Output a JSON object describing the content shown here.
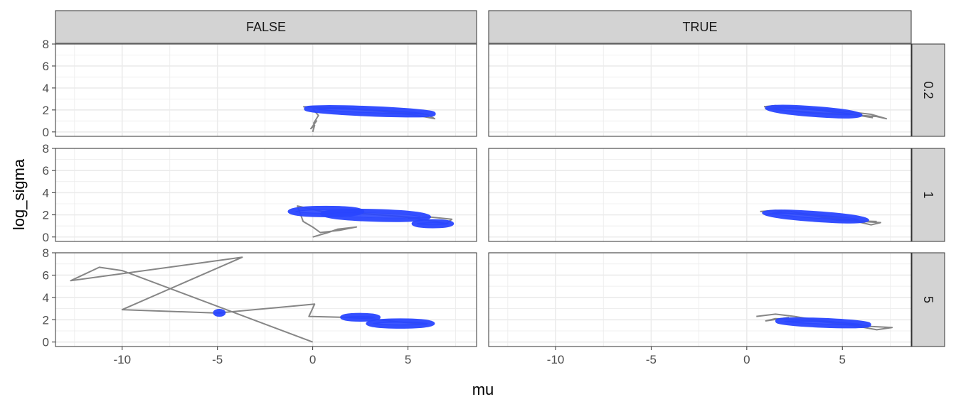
{
  "chart_data": {
    "type": "line",
    "title": "",
    "xlabel": "mu",
    "ylabel": "log_sigma",
    "xlim": [
      -13.5,
      8.6
    ],
    "ylim": [
      -0.4,
      8.0
    ],
    "x_ticks": [
      -10,
      -5,
      0,
      5
    ],
    "x_tick_labels": [
      "-10",
      "-5",
      "0",
      "5"
    ],
    "y_ticks": [
      0,
      2,
      4,
      6,
      8
    ],
    "y_tick_labels": [
      "0",
      "2",
      "4",
      "6",
      "8"
    ],
    "grid": true,
    "theme": "bw",
    "facet_cols": [
      "FALSE",
      "TRUE"
    ],
    "facet_rows": [
      "0.2",
      "1",
      "5"
    ],
    "colors": {
      "trace": "#7f7f7f",
      "posterior": "#2946ff",
      "strip_fill": "#d3d3d3",
      "grid": "#ebebeb"
    },
    "panels": [
      {
        "col": "FALSE",
        "row": "0.2",
        "trace": [
          [
            0,
            0
          ],
          [
            0.1,
            0.6
          ],
          [
            -0.1,
            0.3
          ],
          [
            0.2,
            1.0
          ],
          [
            0.05,
            0.8
          ],
          [
            0.3,
            1.5
          ],
          [
            0.0,
            2.1
          ],
          [
            1.5,
            2.2
          ],
          [
            3.0,
            2.0
          ],
          [
            4.5,
            1.8
          ],
          [
            6.0,
            1.6
          ],
          [
            6.4,
            1.2
          ],
          [
            5.5,
            1.5
          ],
          [
            3.5,
            1.9
          ],
          [
            1.0,
            2.2
          ],
          [
            -0.5,
            2.3
          ]
        ],
        "ellipses": [
          {
            "cx": 3.0,
            "cy": 1.88,
            "rx": 3.35,
            "ry": 0.28,
            "angle": -0.0705
          }
        ]
      },
      {
        "col": "TRUE",
        "row": "0.2",
        "trace": [
          [
            0.9,
            2.3
          ],
          [
            1.5,
            2.4
          ],
          [
            2.2,
            2.2
          ],
          [
            3.0,
            2.1
          ],
          [
            3.8,
            2.0
          ],
          [
            4.5,
            1.8
          ],
          [
            5.2,
            1.7
          ],
          [
            6.0,
            1.5
          ],
          [
            6.8,
            1.4
          ],
          [
            7.3,
            1.2
          ],
          [
            6.5,
            1.6
          ],
          [
            5.0,
            1.9
          ],
          [
            3.5,
            2.1
          ],
          [
            2.0,
            2.3
          ],
          [
            1.0,
            2.1
          ],
          [
            2.5,
            1.9
          ],
          [
            4.0,
            1.7
          ],
          [
            5.5,
            1.6
          ],
          [
            6.6,
            1.3
          ]
        ],
        "ellipses": [
          {
            "cx": 3.5,
            "cy": 1.85,
            "rx": 2.45,
            "ry": 0.3,
            "angle": -0.13
          }
        ]
      },
      {
        "col": "FALSE",
        "row": "1",
        "trace": [
          [
            0,
            0
          ],
          [
            0.8,
            0.4
          ],
          [
            1.3,
            0.7
          ],
          [
            2.3,
            0.9
          ],
          [
            1.4,
            0.6
          ],
          [
            0.4,
            0.4
          ],
          [
            0.0,
            0.9
          ],
          [
            -0.5,
            1.4
          ],
          [
            -0.8,
            2.8
          ],
          [
            0.5,
            2.3
          ],
          [
            2.0,
            2.2
          ],
          [
            3.5,
            2.0
          ],
          [
            5.0,
            1.8
          ],
          [
            6.0,
            1.5
          ],
          [
            6.5,
            1.4
          ],
          [
            7.0,
            1.2
          ],
          [
            7.3,
            1.6
          ],
          [
            6.2,
            1.8
          ],
          [
            5.0,
            1.7
          ]
        ],
        "ellipses": [
          {
            "cx": 0.7,
            "cy": 2.3,
            "rx": 1.9,
            "ry": 0.32,
            "angle": 0
          },
          {
            "cx": 3.3,
            "cy": 1.95,
            "rx": 2.8,
            "ry": 0.38,
            "angle": -0.05
          },
          {
            "cx": 6.3,
            "cy": 1.2,
            "rx": 1.0,
            "ry": 0.22,
            "angle": 0
          }
        ]
      },
      {
        "col": "TRUE",
        "row": "1",
        "trace": [
          [
            0.7,
            2.3
          ],
          [
            1.5,
            2.4
          ],
          [
            2.3,
            2.3
          ],
          [
            3.0,
            2.1
          ],
          [
            4.0,
            1.9
          ],
          [
            5.0,
            1.7
          ],
          [
            6.0,
            1.4
          ],
          [
            7.0,
            1.3
          ],
          [
            6.5,
            1.1
          ],
          [
            5.5,
            1.5
          ],
          [
            4.2,
            1.8
          ],
          [
            3.0,
            2.0
          ],
          [
            1.8,
            2.2
          ],
          [
            1.0,
            2.0
          ],
          [
            2.0,
            2.4
          ],
          [
            4.8,
            1.5
          ],
          [
            6.8,
            1.4
          ]
        ],
        "ellipses": [
          {
            "cx": 3.6,
            "cy": 1.85,
            "rx": 2.7,
            "ry": 0.3,
            "angle": -0.12
          }
        ]
      },
      {
        "col": "FALSE",
        "row": "5",
        "trace": [
          [
            0,
            0
          ],
          [
            -10.0,
            6.4
          ],
          [
            -11.2,
            6.7
          ],
          [
            -12.7,
            5.5
          ],
          [
            -3.7,
            7.6
          ],
          [
            -10.0,
            2.9
          ],
          [
            -5.0,
            2.6
          ],
          [
            0.1,
            3.4
          ],
          [
            -0.2,
            2.3
          ],
          [
            2.0,
            2.2
          ],
          [
            3.0,
            2.1
          ],
          [
            4.5,
            1.8
          ],
          [
            6.0,
            1.6
          ]
        ],
        "ellipses": [
          {
            "cx": -4.9,
            "cy": 2.62,
            "rx": 0.22,
            "ry": 0.09,
            "angle": 0
          },
          {
            "cx": 2.5,
            "cy": 2.22,
            "rx": 0.95,
            "ry": 0.2,
            "angle": 0
          },
          {
            "cx": 4.6,
            "cy": 1.66,
            "rx": 1.7,
            "ry": 0.27,
            "angle": 0
          }
        ]
      },
      {
        "col": "TRUE",
        "row": "5",
        "trace": [
          [
            0.5,
            2.3
          ],
          [
            1.5,
            2.5
          ],
          [
            2.5,
            2.3
          ],
          [
            3.5,
            2.0
          ],
          [
            4.5,
            1.8
          ],
          [
            5.5,
            1.6
          ],
          [
            6.5,
            1.4
          ],
          [
            7.6,
            1.3
          ],
          [
            6.8,
            1.1
          ],
          [
            5.5,
            1.5
          ],
          [
            4.0,
            1.8
          ],
          [
            2.8,
            2.0
          ],
          [
            1.5,
            2.1
          ],
          [
            1.0,
            1.9
          ],
          [
            2.2,
            2.2
          ]
        ],
        "ellipses": [
          {
            "cx": 4.0,
            "cy": 1.72,
            "rx": 2.4,
            "ry": 0.25,
            "angle": -0.07
          }
        ]
      }
    ]
  }
}
